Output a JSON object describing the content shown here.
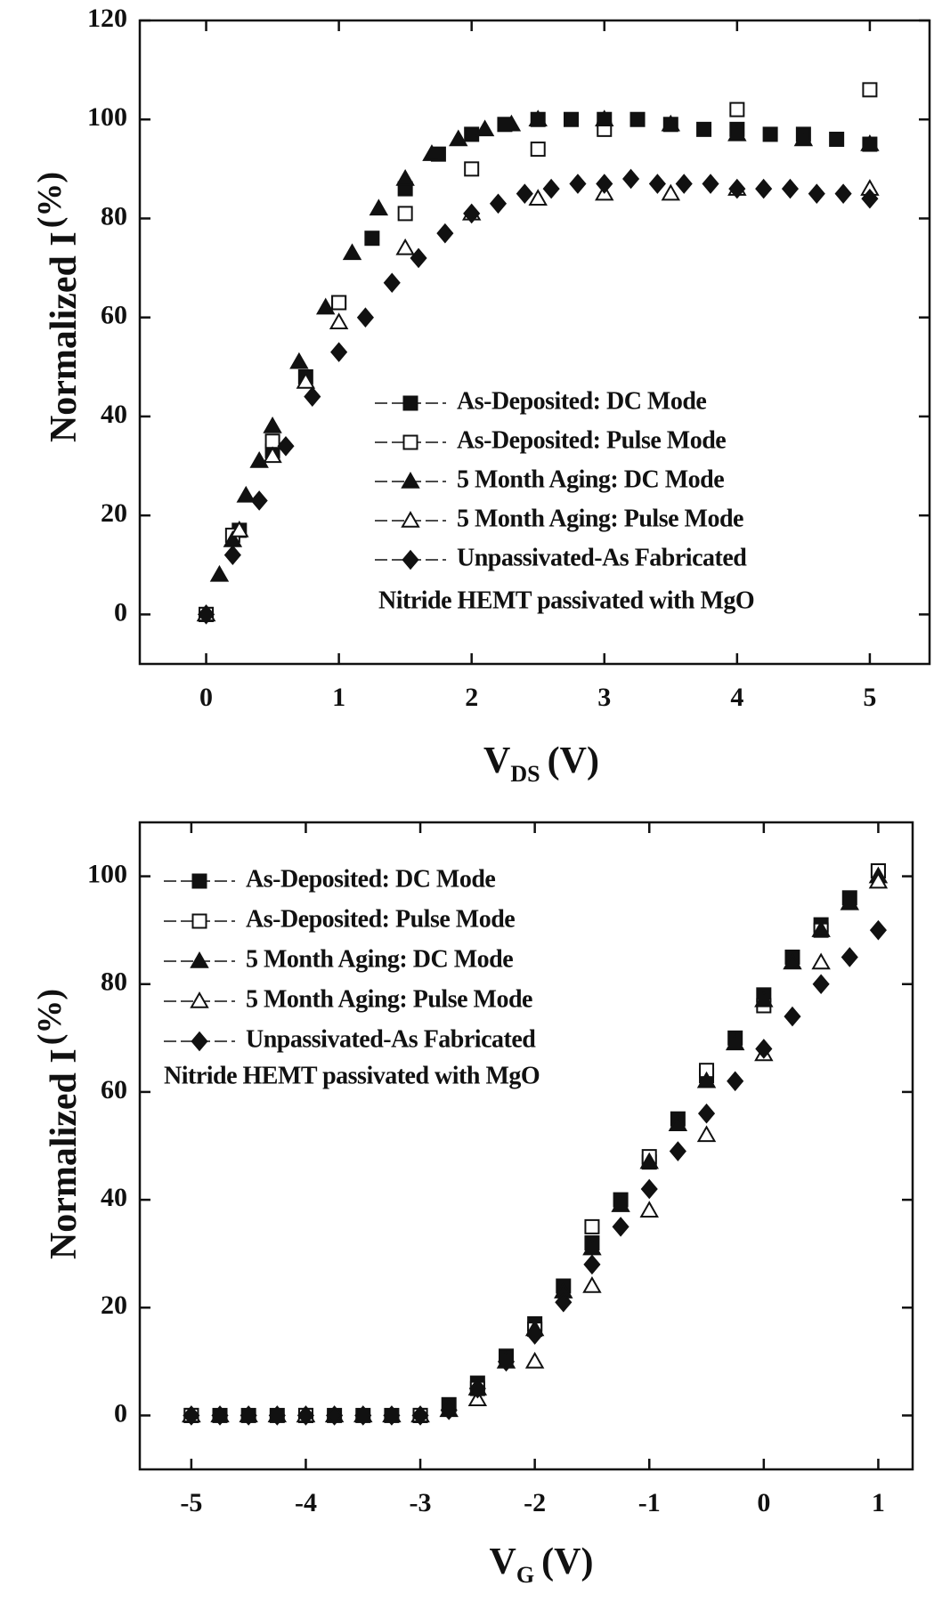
{
  "chart_data": [
    {
      "type": "scatter",
      "ylabel": "Normalized I",
      "ylabel_unit": "(%)",
      "xlabel": "V",
      "xlabel_sub": "DS",
      "xlabel_unit": "(V)",
      "annotation": "Nitride HEMT passivated with MgO",
      "xlim": [
        -0.5,
        5.45
      ],
      "ylim": [
        -10,
        120
      ],
      "xticks": [
        0,
        1,
        2,
        3,
        4,
        5
      ],
      "yticks": [
        0,
        20,
        40,
        60,
        80,
        100,
        120
      ],
      "series": [
        {
          "name": "As-Deposited: DC Mode",
          "color": "#111111",
          "marker": "square",
          "filled": true,
          "x": [
            0,
            0.25,
            0.5,
            0.75,
            1,
            1.25,
            1.5,
            1.75,
            2,
            2.25,
            2.5,
            2.75,
            3,
            3.25,
            3.5,
            3.75,
            4,
            4.25,
            4.5,
            4.75,
            5
          ],
          "values": [
            0,
            17,
            33,
            48,
            63,
            76,
            86,
            93,
            97,
            99,
            100,
            100,
            100,
            100,
            99,
            98,
            98,
            97,
            97,
            96,
            95
          ]
        },
        {
          "name": "As-Deposited: Pulse Mode",
          "color": "#111111",
          "marker": "square",
          "filled": false,
          "x": [
            0,
            0.2,
            0.5,
            1,
            1.5,
            2,
            2.5,
            3,
            4,
            5
          ],
          "values": [
            0,
            16,
            35,
            63,
            81,
            90,
            94,
            98,
            102,
            106
          ]
        },
        {
          "name": "5 Month Aging: DC Mode",
          "color": "#111111",
          "marker": "triangle",
          "filled": true,
          "x": [
            0,
            0.1,
            0.2,
            0.3,
            0.4,
            0.5,
            0.7,
            0.9,
            1.1,
            1.3,
            1.5,
            1.7,
            1.9,
            2.1,
            2.3,
            2.5,
            3,
            3.5,
            4,
            4.5,
            5
          ],
          "values": [
            0,
            8,
            15,
            24,
            31,
            38,
            51,
            62,
            73,
            82,
            88,
            93,
            96,
            98,
            99,
            100,
            100,
            99,
            97,
            96,
            95
          ]
        },
        {
          "name": "5 Month Aging: Pulse Mode",
          "color": "#111111",
          "marker": "triangle",
          "filled": false,
          "x": [
            0,
            0.25,
            0.5,
            0.75,
            1,
            1.5,
            2,
            2.5,
            3,
            3.5,
            4,
            5
          ],
          "values": [
            0,
            17,
            32,
            47,
            59,
            74,
            81,
            84,
            85,
            85,
            86,
            86
          ]
        },
        {
          "name": "Unpassivated-As Fabricated",
          "color": "#111111",
          "marker": "diamond",
          "filled": true,
          "x": [
            0,
            0.2,
            0.4,
            0.6,
            0.8,
            1,
            1.2,
            1.4,
            1.6,
            1.8,
            2,
            2.2,
            2.4,
            2.6,
            2.8,
            3,
            3.2,
            3.4,
            3.6,
            3.8,
            4,
            4.2,
            4.4,
            4.6,
            4.8,
            5
          ],
          "values": [
            0,
            12,
            23,
            34,
            44,
            53,
            60,
            67,
            72,
            77,
            81,
            83,
            85,
            86,
            87,
            87,
            88,
            87,
            87,
            87,
            86,
            86,
            86,
            85,
            85,
            84
          ]
        }
      ]
    },
    {
      "type": "scatter",
      "ylabel": "Normalized I",
      "ylabel_unit": "(%)",
      "xlabel": "V",
      "xlabel_sub": "G",
      "xlabel_unit": "(V)",
      "annotation": "Nitride HEMT passivated with MgO",
      "xlim": [
        -5.45,
        1.3
      ],
      "ylim": [
        -10,
        110
      ],
      "xticks": [
        -5,
        -4,
        -3,
        -2,
        -1,
        0,
        1
      ],
      "yticks": [
        0,
        20,
        40,
        60,
        80,
        100
      ],
      "series": [
        {
          "name": "As-Deposited: DC Mode",
          "color": "#111111",
          "marker": "square",
          "filled": true,
          "x": [
            -5,
            -4.75,
            -4.5,
            -4.25,
            -4,
            -3.75,
            -3.5,
            -3.25,
            -3,
            -2.75,
            -2.5,
            -2.25,
            -2,
            -1.75,
            -1.5,
            -1.25,
            -1,
            -0.75,
            -0.5,
            -0.25,
            0,
            0.25,
            0.5,
            0.75,
            1
          ],
          "values": [
            0,
            0,
            0,
            0,
            0,
            0,
            0,
            0,
            0,
            2,
            6,
            11,
            17,
            24,
            32,
            40,
            47,
            55,
            63,
            70,
            78,
            85,
            91,
            96,
            101
          ]
        },
        {
          "name": "As-Deposited: Pulse Mode",
          "color": "#111111",
          "marker": "square",
          "filled": false,
          "x": [
            -5,
            -4,
            -3,
            -2.5,
            -2,
            -1.5,
            -1,
            -0.5,
            0,
            0.5,
            1
          ],
          "values": [
            0,
            0,
            0,
            5,
            16,
            35,
            48,
            64,
            76,
            90,
            101
          ]
        },
        {
          "name": "5 Month Aging: DC Mode",
          "color": "#111111",
          "marker": "triangle",
          "filled": true,
          "x": [
            -5,
            -4.75,
            -4.5,
            -4.25,
            -4,
            -3.75,
            -3.5,
            -3.25,
            -3,
            -2.75,
            -2.5,
            -2.25,
            -2,
            -1.75,
            -1.5,
            -1.25,
            -1,
            -0.75,
            -0.5,
            -0.25,
            0,
            0.25,
            0.5,
            0.75,
            1
          ],
          "values": [
            0,
            0,
            0,
            0,
            0,
            0,
            0,
            0,
            0,
            1,
            5,
            10,
            16,
            23,
            31,
            39,
            47,
            54,
            62,
            69,
            77,
            84,
            90,
            95,
            100
          ]
        },
        {
          "name": "5 Month Aging: Pulse Mode",
          "color": "#111111",
          "marker": "triangle",
          "filled": false,
          "x": [
            -5,
            -4,
            -3,
            -2.5,
            -2,
            -1.5,
            -1,
            -0.5,
            0,
            0.5,
            1
          ],
          "values": [
            0,
            0,
            0,
            3,
            10,
            24,
            38,
            52,
            67,
            84,
            99
          ]
        },
        {
          "name": "Unpassivated-As Fabricated",
          "color": "#111111",
          "marker": "diamond",
          "filled": true,
          "x": [
            -5,
            -4.75,
            -4.5,
            -4.25,
            -4,
            -3.75,
            -3.5,
            -3.25,
            -3,
            -2.75,
            -2.5,
            -2.25,
            -2,
            -1.75,
            -1.5,
            -1.25,
            -1,
            -0.75,
            -0.5,
            -0.25,
            0,
            0.25,
            0.5,
            0.75,
            1
          ],
          "values": [
            0,
            0,
            0,
            0,
            0,
            0,
            0,
            0,
            0,
            1,
            5,
            10,
            15,
            21,
            28,
            35,
            42,
            49,
            56,
            62,
            68,
            74,
            80,
            85,
            90
          ]
        }
      ]
    }
  ]
}
